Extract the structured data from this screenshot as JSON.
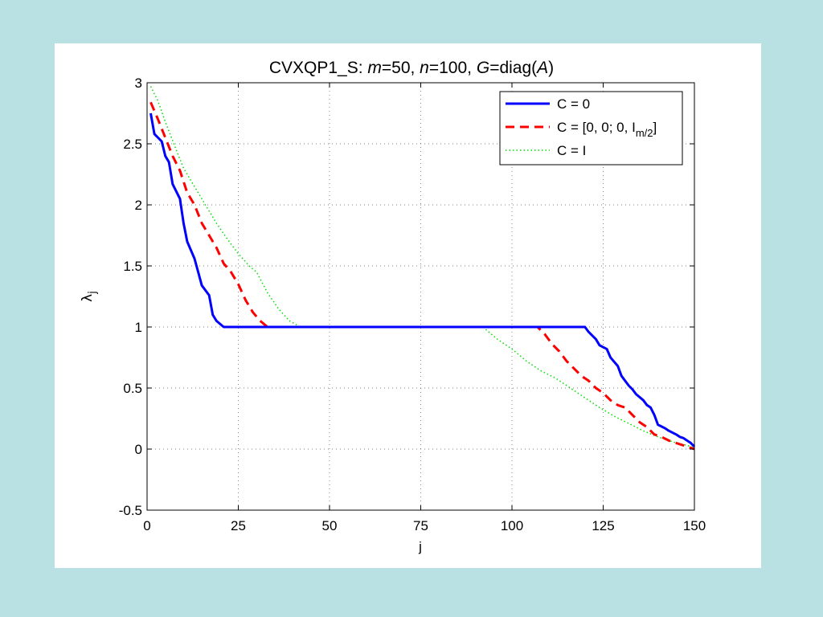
{
  "colors": {
    "background": "#b9e0e2",
    "figure": "#ffffff",
    "series_c0": "#0000ff",
    "series_cblock": "#ff0000",
    "series_ci": "#00dd00"
  },
  "chart_data": {
    "type": "line",
    "title_parts": [
      "CVXQP1_S: ",
      "m",
      "=50, ",
      "n",
      "=100, ",
      "G",
      "=diag(",
      "A",
      ")"
    ],
    "xlabel": "j",
    "ylabel_main": "λ",
    "ylabel_sub": "j",
    "xlim": [
      0,
      150
    ],
    "ylim": [
      -0.5,
      3
    ],
    "xticks": [
      0,
      25,
      50,
      75,
      100,
      125,
      150
    ],
    "xtick_labels": [
      "0",
      "25",
      "50",
      "75",
      "100",
      "125",
      "150"
    ],
    "yticks": [
      -0.5,
      0,
      0.5,
      1,
      1.5,
      2,
      2.5,
      3
    ],
    "ytick_labels": [
      "-0.5",
      "0",
      "0.5",
      "1",
      "1.5",
      "2",
      "2.5",
      "3"
    ],
    "grid": true,
    "legend_position": "top-right",
    "legend": {
      "c0": "C = 0",
      "cblock_main": "C = [0, 0; 0, I",
      "cblock_sub": "m/2",
      "cblock_close": "]",
      "ci": "C = I"
    },
    "series": [
      {
        "key": "c0",
        "color": "#0000ff",
        "style": "solid",
        "x": [
          1,
          2,
          4,
          5,
          6,
          7,
          9,
          10,
          11,
          13,
          14,
          15,
          17,
          18,
          19,
          21,
          40,
          60,
          80,
          100,
          120,
          121,
          123,
          124,
          126,
          127,
          129,
          130,
          131,
          132,
          133,
          134,
          136,
          137,
          138,
          139,
          140,
          142,
          143,
          145,
          146,
          147,
          148,
          149,
          150
        ],
        "y": [
          2.75,
          2.58,
          2.52,
          2.4,
          2.35,
          2.17,
          2.05,
          1.85,
          1.7,
          1.56,
          1.45,
          1.34,
          1.26,
          1.1,
          1.05,
          1.0,
          1.0,
          1.0,
          1.0,
          1.0,
          1.0,
          0.96,
          0.9,
          0.85,
          0.82,
          0.75,
          0.68,
          0.6,
          0.56,
          0.52,
          0.49,
          0.45,
          0.4,
          0.36,
          0.34,
          0.28,
          0.2,
          0.17,
          0.15,
          0.12,
          0.1,
          0.09,
          0.07,
          0.05,
          0.02
        ]
      },
      {
        "key": "cblock",
        "color": "#ff0000",
        "style": "dashed",
        "x": [
          1,
          3,
          5,
          7,
          9,
          11,
          13,
          15,
          17,
          19,
          21,
          23,
          25,
          27,
          29,
          31,
          33,
          40,
          60,
          80,
          100,
          107,
          109,
          111,
          113,
          115,
          117,
          119,
          121,
          123,
          125,
          127,
          129,
          131,
          133,
          135,
          137,
          139,
          141,
          143,
          145,
          147,
          150
        ],
        "y": [
          2.84,
          2.7,
          2.55,
          2.4,
          2.28,
          2.1,
          2.0,
          1.85,
          1.75,
          1.65,
          1.52,
          1.45,
          1.35,
          1.22,
          1.12,
          1.05,
          1.0,
          1.0,
          1.0,
          1.0,
          1.0,
          1.0,
          0.94,
          0.86,
          0.8,
          0.72,
          0.66,
          0.6,
          0.56,
          0.5,
          0.46,
          0.4,
          0.36,
          0.34,
          0.28,
          0.22,
          0.18,
          0.12,
          0.1,
          0.07,
          0.05,
          0.03,
          0.0
        ]
      },
      {
        "key": "ci",
        "color": "#00dd00",
        "style": "dotted",
        "x": [
          1,
          3,
          5,
          8,
          10,
          13,
          16,
          19,
          22,
          25,
          28,
          30,
          33,
          36,
          39,
          42,
          60,
          80,
          92,
          96,
          100,
          104,
          108,
          112,
          116,
          120,
          124,
          128,
          132,
          136,
          140,
          144,
          148,
          150
        ],
        "y": [
          2.97,
          2.85,
          2.68,
          2.45,
          2.3,
          2.15,
          2.0,
          1.85,
          1.72,
          1.6,
          1.5,
          1.45,
          1.28,
          1.15,
          1.05,
          1.0,
          1.0,
          1.0,
          1.0,
          0.9,
          0.82,
          0.72,
          0.64,
          0.58,
          0.5,
          0.42,
          0.34,
          0.27,
          0.21,
          0.15,
          0.1,
          0.06,
          0.03,
          0.01
        ]
      }
    ]
  }
}
